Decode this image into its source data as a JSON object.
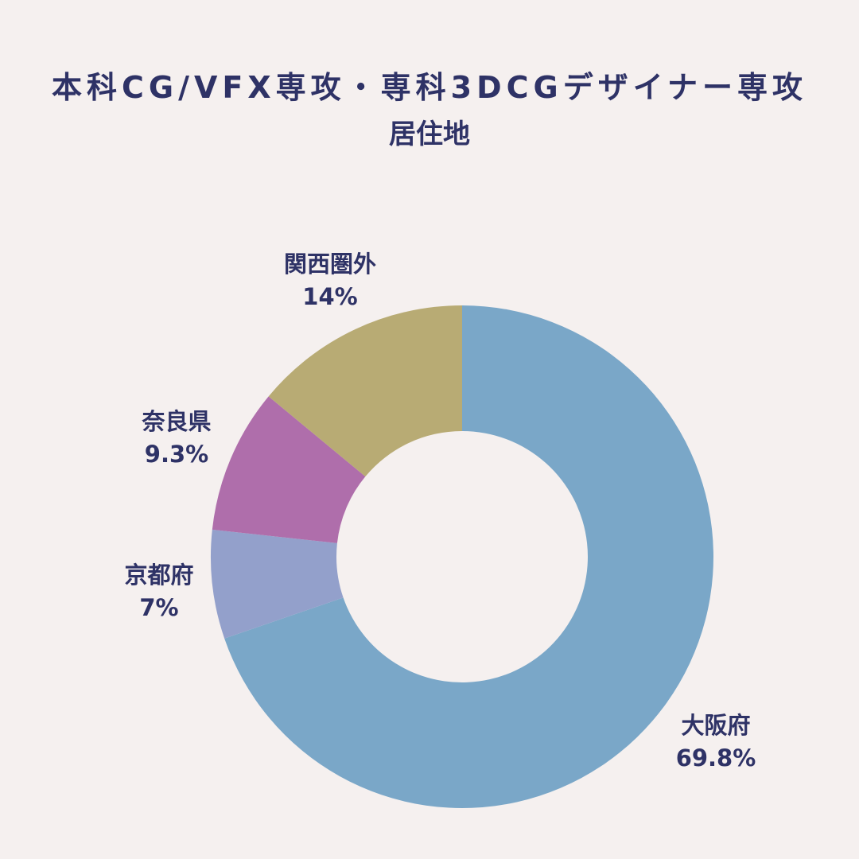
{
  "chart_data": {
    "type": "pie",
    "style": "donut",
    "title": "本科CG/VFX専攻・専科3DCGデザイナー専攻",
    "subtitle": "居住地",
    "slices": [
      {
        "label": "大阪府",
        "value": 69.8,
        "display": "69.8%",
        "color": "#7aa7c8"
      },
      {
        "label": "京都府",
        "value": 7,
        "display": "7%",
        "color": "#93a0cb"
      },
      {
        "label": "奈良県",
        "value": 9.3,
        "display": "9.3%",
        "color": "#af6eab"
      },
      {
        "label": "関西圏外",
        "value": 14,
        "display": "14%",
        "color": "#b8ab74"
      }
    ],
    "start_angle": "top",
    "direction": "clockwise"
  }
}
